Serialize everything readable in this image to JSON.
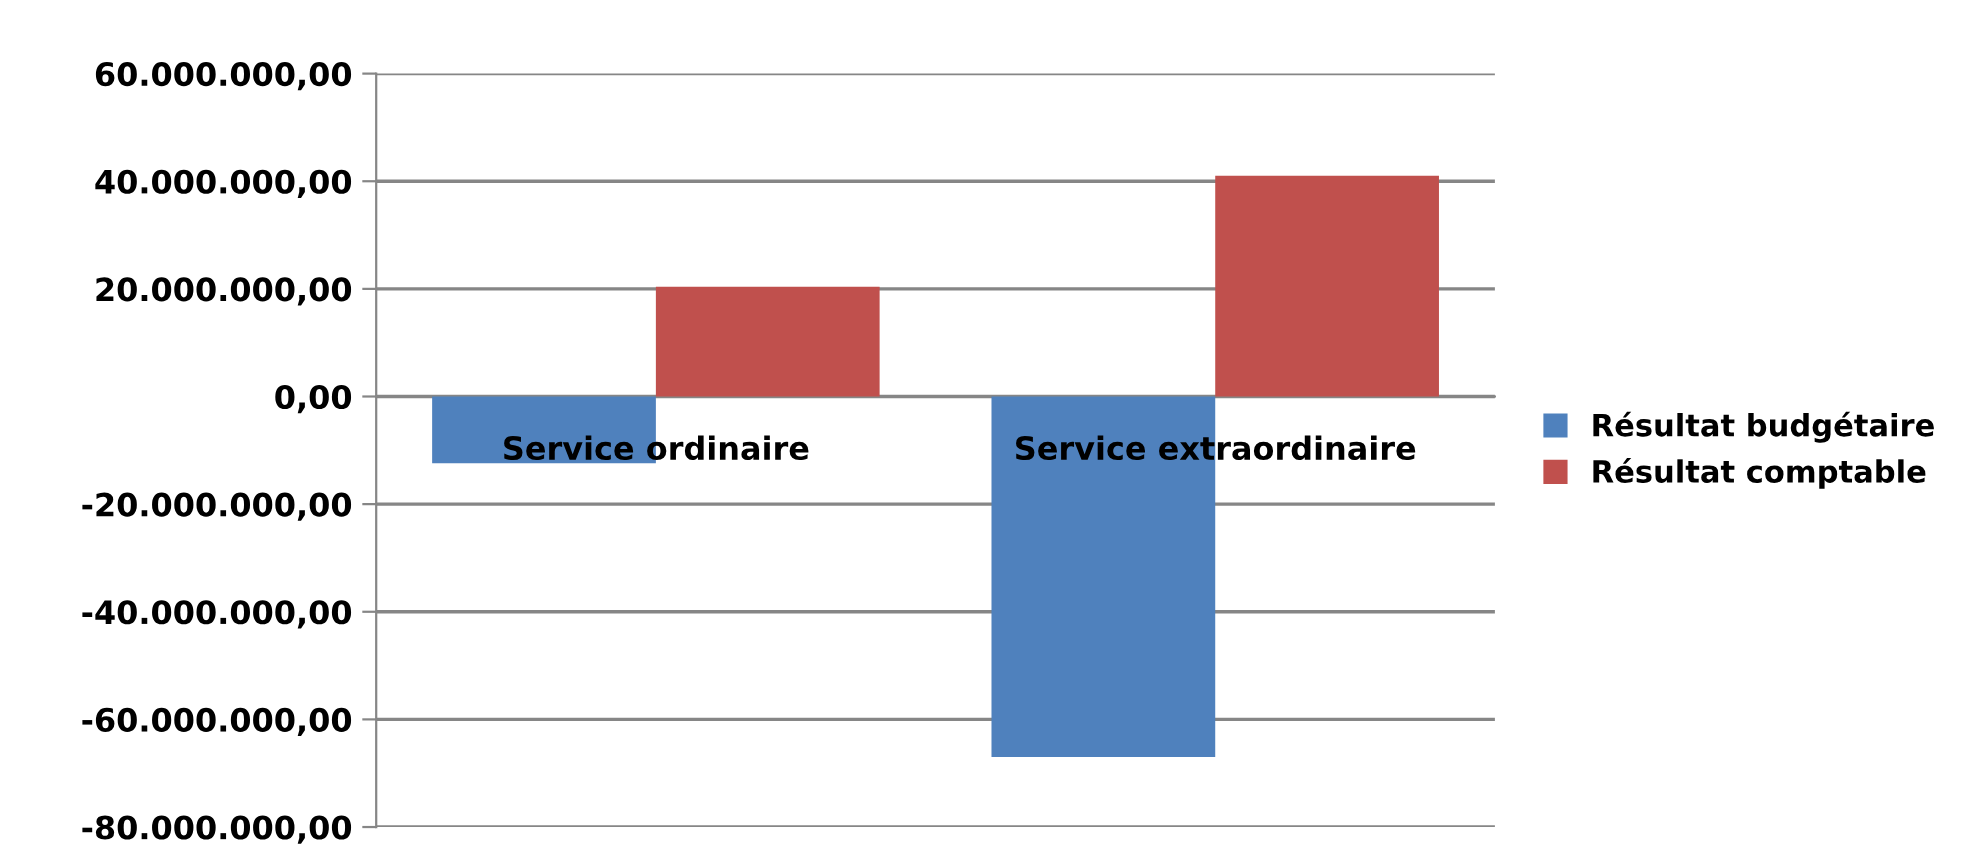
{
  "chart_data": {
    "type": "bar",
    "categories": [
      "Service ordinaire",
      "Service extraordinaire"
    ],
    "series": [
      {
        "name": "Résultat budgétaire",
        "color": "#4f81bd",
        "values": [
          -12400000,
          -67000000
        ]
      },
      {
        "name": "Résultat comptable",
        "color": "#c0504d",
        "values": [
          20400000,
          41000000
        ]
      }
    ],
    "ylim": [
      -80000000,
      60000000
    ],
    "yticks": [
      {
        "value": -80000000,
        "label": "-80.000.000,00"
      },
      {
        "value": -60000000,
        "label": "-60.000.000,00"
      },
      {
        "value": -40000000,
        "label": "-40.000.000,00"
      },
      {
        "value": -20000000,
        "label": "-20.000.000,00"
      },
      {
        "value": 0,
        "label": "0,00"
      },
      {
        "value": 20000000,
        "label": "20.000.000,00"
      },
      {
        "value": 40000000,
        "label": "40.000.000,00"
      },
      {
        "value": 60000000,
        "label": "60.000.000,00"
      }
    ],
    "grid": "y",
    "legend": "right"
  }
}
